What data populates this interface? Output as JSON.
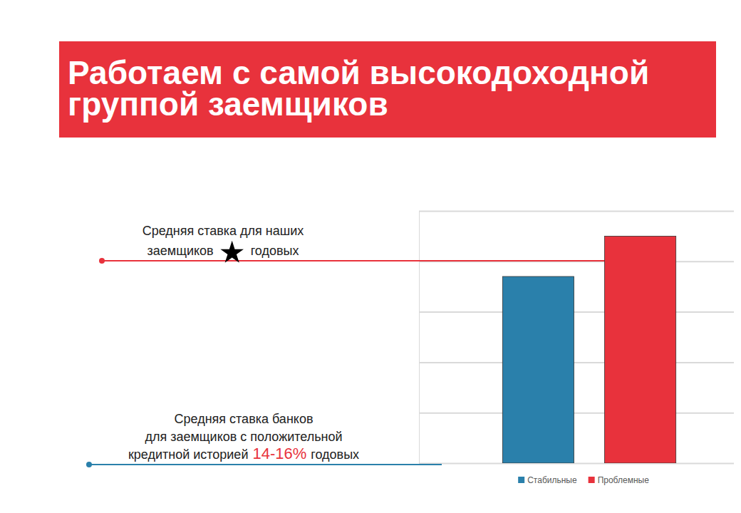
{
  "chart_data": {
    "type": "bar",
    "title": "Работаем с самой высокодоходной группой заемщиков",
    "categories": [
      null
    ],
    "series": [
      {
        "name": "Стабильные",
        "color": "#2a80ab",
        "values": [
          3.7
        ]
      },
      {
        "name": "Проблемные",
        "color": "#e8323c",
        "values": [
          4.5
        ]
      }
    ],
    "ylim": [
      0,
      5
    ],
    "yticks": [
      0,
      1,
      2,
      3,
      4,
      5
    ],
    "grid": true,
    "tick_labels": false,
    "legend": "bottom",
    "annotations": [
      {
        "lines": [
          "Средняя ставка для наших",
          "заемщиков"
        ],
        "suffix": "годовых"
      },
      {
        "lines": [
          "Средняя ставка банков",
          "для  заемщиков с положительной",
          "кредитной историей"
        ],
        "highlight": "14-16%",
        "suffix": "годовых"
      }
    ]
  }
}
